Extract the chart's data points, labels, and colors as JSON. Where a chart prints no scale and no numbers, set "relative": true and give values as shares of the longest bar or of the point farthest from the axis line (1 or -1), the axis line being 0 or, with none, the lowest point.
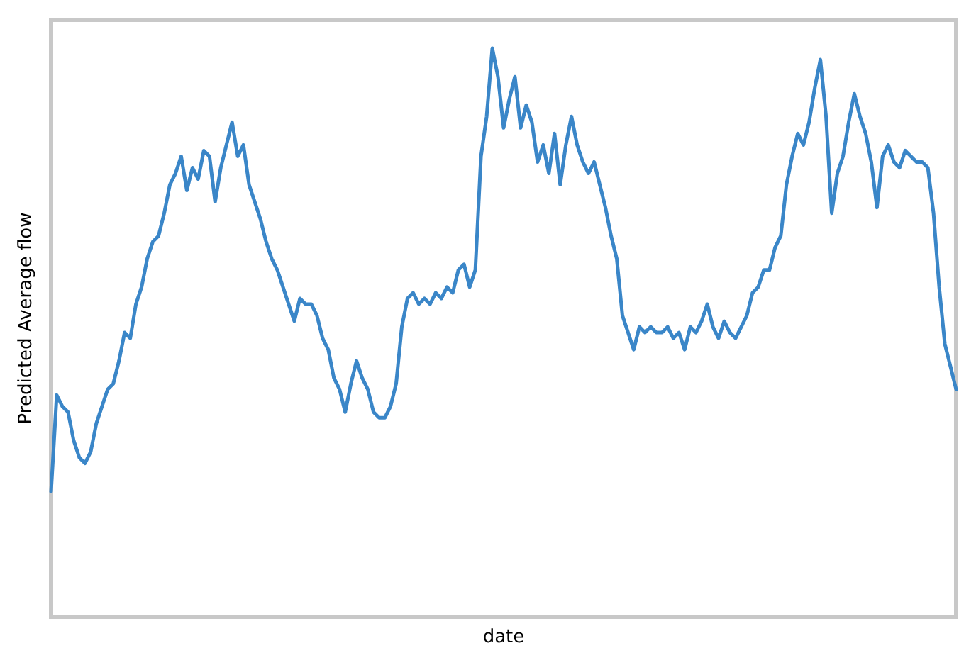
{
  "chart_data": {
    "type": "line",
    "relative": true,
    "xlabel": "date",
    "ylabel": "Predicted Average flow",
    "marker": "none",
    "line_style": "solid",
    "categories": [
      null,
      null,
      null,
      null,
      null,
      null,
      null,
      null,
      null,
      null,
      null,
      null,
      null,
      null,
      null,
      null,
      null,
      null,
      null,
      null,
      null,
      null,
      null,
      null,
      null,
      null,
      null,
      null,
      null,
      null,
      null,
      null,
      null,
      null,
      null,
      null,
      null,
      null,
      null,
      null,
      null,
      null,
      null,
      null,
      null,
      null,
      null,
      null,
      null,
      null,
      null,
      null,
      null,
      null,
      null,
      null,
      null,
      null,
      null,
      null,
      null,
      null,
      null,
      null,
      null,
      null,
      null,
      null,
      null,
      null,
      null,
      null,
      null,
      null,
      null,
      null,
      null,
      null,
      null,
      null,
      null,
      null,
      null,
      null,
      null,
      null,
      null,
      null,
      null,
      null,
      null,
      null,
      null,
      null,
      null,
      null,
      null,
      null,
      null,
      null,
      null,
      null,
      null,
      null,
      null,
      null,
      null,
      null,
      null,
      null,
      null,
      null,
      null,
      null,
      null,
      null,
      null,
      null,
      null,
      null,
      null,
      null,
      null,
      null,
      null,
      null,
      null,
      null,
      null,
      null,
      null,
      null,
      null,
      null,
      null,
      null,
      null,
      null,
      null,
      null,
      null,
      null,
      null,
      null,
      null,
      null,
      null,
      null,
      null,
      null,
      null,
      null,
      null,
      null,
      null,
      null,
      null,
      null,
      null,
      null,
      null
    ],
    "series": [
      {
        "color": "#3a86c8",
        "values": [
          0.22,
          0.39,
          0.37,
          0.36,
          0.31,
          0.28,
          0.27,
          0.29,
          0.34,
          0.37,
          0.4,
          0.41,
          0.45,
          0.5,
          0.49,
          0.55,
          0.58,
          0.63,
          0.66,
          0.67,
          0.71,
          0.76,
          0.78,
          0.81,
          0.75,
          0.79,
          0.77,
          0.82,
          0.81,
          0.73,
          0.79,
          0.83,
          0.87,
          0.81,
          0.83,
          0.76,
          0.73,
          0.7,
          0.66,
          0.63,
          0.61,
          0.58,
          0.55,
          0.52,
          0.56,
          0.55,
          0.55,
          0.53,
          0.49,
          0.47,
          0.42,
          0.4,
          0.36,
          0.41,
          0.45,
          0.42,
          0.4,
          0.36,
          0.35,
          0.35,
          0.37,
          0.41,
          0.51,
          0.56,
          0.57,
          0.55,
          0.56,
          0.55,
          0.57,
          0.56,
          0.58,
          0.57,
          0.61,
          0.62,
          0.58,
          0.61,
          0.81,
          0.88,
          1,
          0.95,
          0.86,
          0.91,
          0.95,
          0.86,
          0.9,
          0.87,
          0.8,
          0.83,
          0.78,
          0.85,
          0.76,
          0.83,
          0.88,
          0.83,
          0.8,
          0.78,
          0.8,
          0.76,
          0.72,
          0.67,
          0.63,
          0.53,
          0.5,
          0.47,
          0.51,
          0.5,
          0.51,
          0.5,
          0.5,
          0.51,
          0.49,
          0.5,
          0.47,
          0.51,
          0.5,
          0.52,
          0.55,
          0.51,
          0.49,
          0.52,
          0.5,
          0.49,
          0.51,
          0.53,
          0.57,
          0.58,
          0.61,
          0.61,
          0.65,
          0.67,
          0.76,
          0.81,
          0.85,
          0.83,
          0.87,
          0.93,
          0.98,
          0.88,
          0.71,
          0.78,
          0.81,
          0.87,
          0.92,
          0.88,
          0.85,
          0.8,
          0.72,
          0.81,
          0.83,
          0.8,
          0.79,
          0.82,
          0.81,
          0.8,
          0.8,
          0.79,
          0.71,
          0.58,
          0.48,
          0.44,
          0.4
        ]
      }
    ]
  }
}
